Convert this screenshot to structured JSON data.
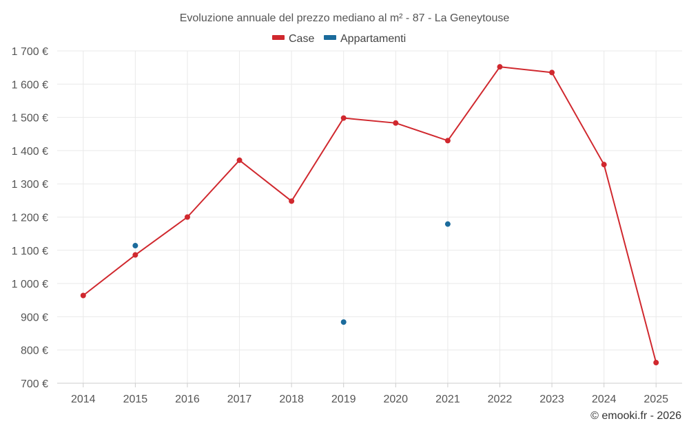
{
  "chart_data": {
    "type": "line",
    "title": "Evoluzione annuale del prezzo mediano al m² - 87 - La Geneytouse",
    "categories": [
      "2014",
      "2015",
      "2016",
      "2017",
      "2018",
      "2019",
      "2020",
      "2021",
      "2022",
      "2023",
      "2024",
      "2025"
    ],
    "y_tick_labels": [
      "700 €",
      "800 €",
      "900 €",
      "1 000 €",
      "1 100 €",
      "1 200 €",
      "1 300 €",
      "1 400 €",
      "1 500 €",
      "1 600 €",
      "1 700 €"
    ],
    "y_ticks": [
      700,
      800,
      900,
      1000,
      1100,
      1200,
      1300,
      1400,
      1500,
      1600,
      1700
    ],
    "ylim": [
      700,
      1700
    ],
    "series": [
      {
        "name": "Case",
        "color": "#d0282e",
        "mode": "line+markers",
        "values": [
          964,
          1086,
          1200,
          1371,
          1248,
          1498,
          1483,
          1430,
          1652,
          1635,
          1358,
          762
        ]
      },
      {
        "name": "Appartamenti",
        "color": "#1b6b9c",
        "mode": "markers",
        "values": [
          null,
          1114,
          null,
          null,
          null,
          884,
          null,
          1179,
          null,
          null,
          null,
          null
        ]
      }
    ],
    "legend_position": "top-center",
    "grid": true
  },
  "credit": "© emooki.fr - 2026"
}
